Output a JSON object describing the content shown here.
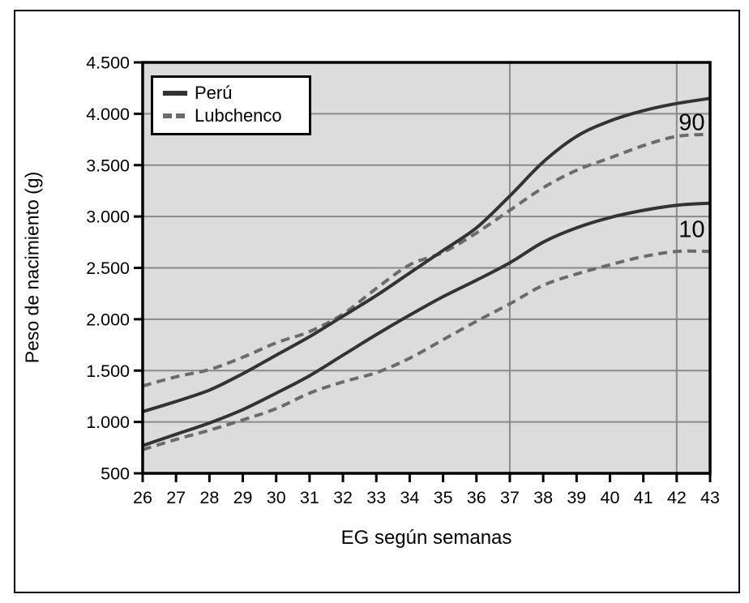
{
  "chart_data": {
    "type": "line",
    "xlabel": "EG según semanas",
    "ylabel": "Peso de nacimiento (g)",
    "xlim": [
      26,
      43
    ],
    "ylim": [
      500,
      4500
    ],
    "x": [
      26,
      27,
      28,
      29,
      30,
      31,
      32,
      33,
      34,
      35,
      36,
      37,
      38,
      39,
      40,
      41,
      42,
      43
    ],
    "x_tick_labels": [
      "26",
      "27",
      "28",
      "29",
      "30",
      "31",
      "32",
      "33",
      "34",
      "35",
      "36",
      "37",
      "38",
      "39",
      "40",
      "41",
      "42",
      "43"
    ],
    "y_ticks": [
      500,
      1000,
      1500,
      2000,
      2500,
      3000,
      3500,
      4000,
      4500
    ],
    "y_tick_labels": [
      "500",
      "1.000",
      "1.500",
      "2.000",
      "2.500",
      "3.000",
      "3.500",
      "4.000",
      "4.500"
    ],
    "grid": true,
    "x_gridlines": [
      37,
      42
    ],
    "plot_bg_color": "#dcdcdc",
    "grid_color": "#8a8a8a",
    "frame_color": "#000000",
    "legend": {
      "position": "top-left",
      "entries": [
        {
          "label": "Perú",
          "style": "solid",
          "color": "#333333"
        },
        {
          "label": "Lubchenco",
          "style": "dashed",
          "color": "#6b6b6b"
        }
      ]
    },
    "series": [
      {
        "name": "Lubchenco",
        "percentile": "90",
        "style": "dashed",
        "color": "#6b6b6b",
        "values": [
          1350,
          1440,
          1510,
          1630,
          1770,
          1880,
          2050,
          2300,
          2530,
          2650,
          2840,
          3060,
          3280,
          3450,
          3570,
          3690,
          3780,
          3800
        ]
      },
      {
        "name": "Lubchenco",
        "percentile": "10",
        "style": "dashed",
        "color": "#6b6b6b",
        "values": [
          730,
          830,
          920,
          1020,
          1130,
          1280,
          1390,
          1480,
          1620,
          1800,
          1980,
          2150,
          2330,
          2440,
          2530,
          2610,
          2660,
          2660
        ]
      },
      {
        "name": "Perú",
        "percentile": "90",
        "style": "solid",
        "color": "#333333",
        "values": [
          1100,
          1200,
          1310,
          1470,
          1650,
          1830,
          2030,
          2230,
          2450,
          2670,
          2890,
          3200,
          3530,
          3780,
          3930,
          4030,
          4100,
          4150
        ]
      },
      {
        "name": "Perú",
        "percentile": "10",
        "style": "solid",
        "color": "#333333",
        "values": [
          770,
          880,
          990,
          1120,
          1280,
          1450,
          1650,
          1850,
          2040,
          2220,
          2380,
          2550,
          2750,
          2890,
          2990,
          3060,
          3110,
          3130
        ]
      }
    ],
    "annotations": [
      {
        "text": "90",
        "x": 42.45,
        "y": 3920
      },
      {
        "text": "10",
        "x": 42.45,
        "y": 2880
      }
    ]
  }
}
